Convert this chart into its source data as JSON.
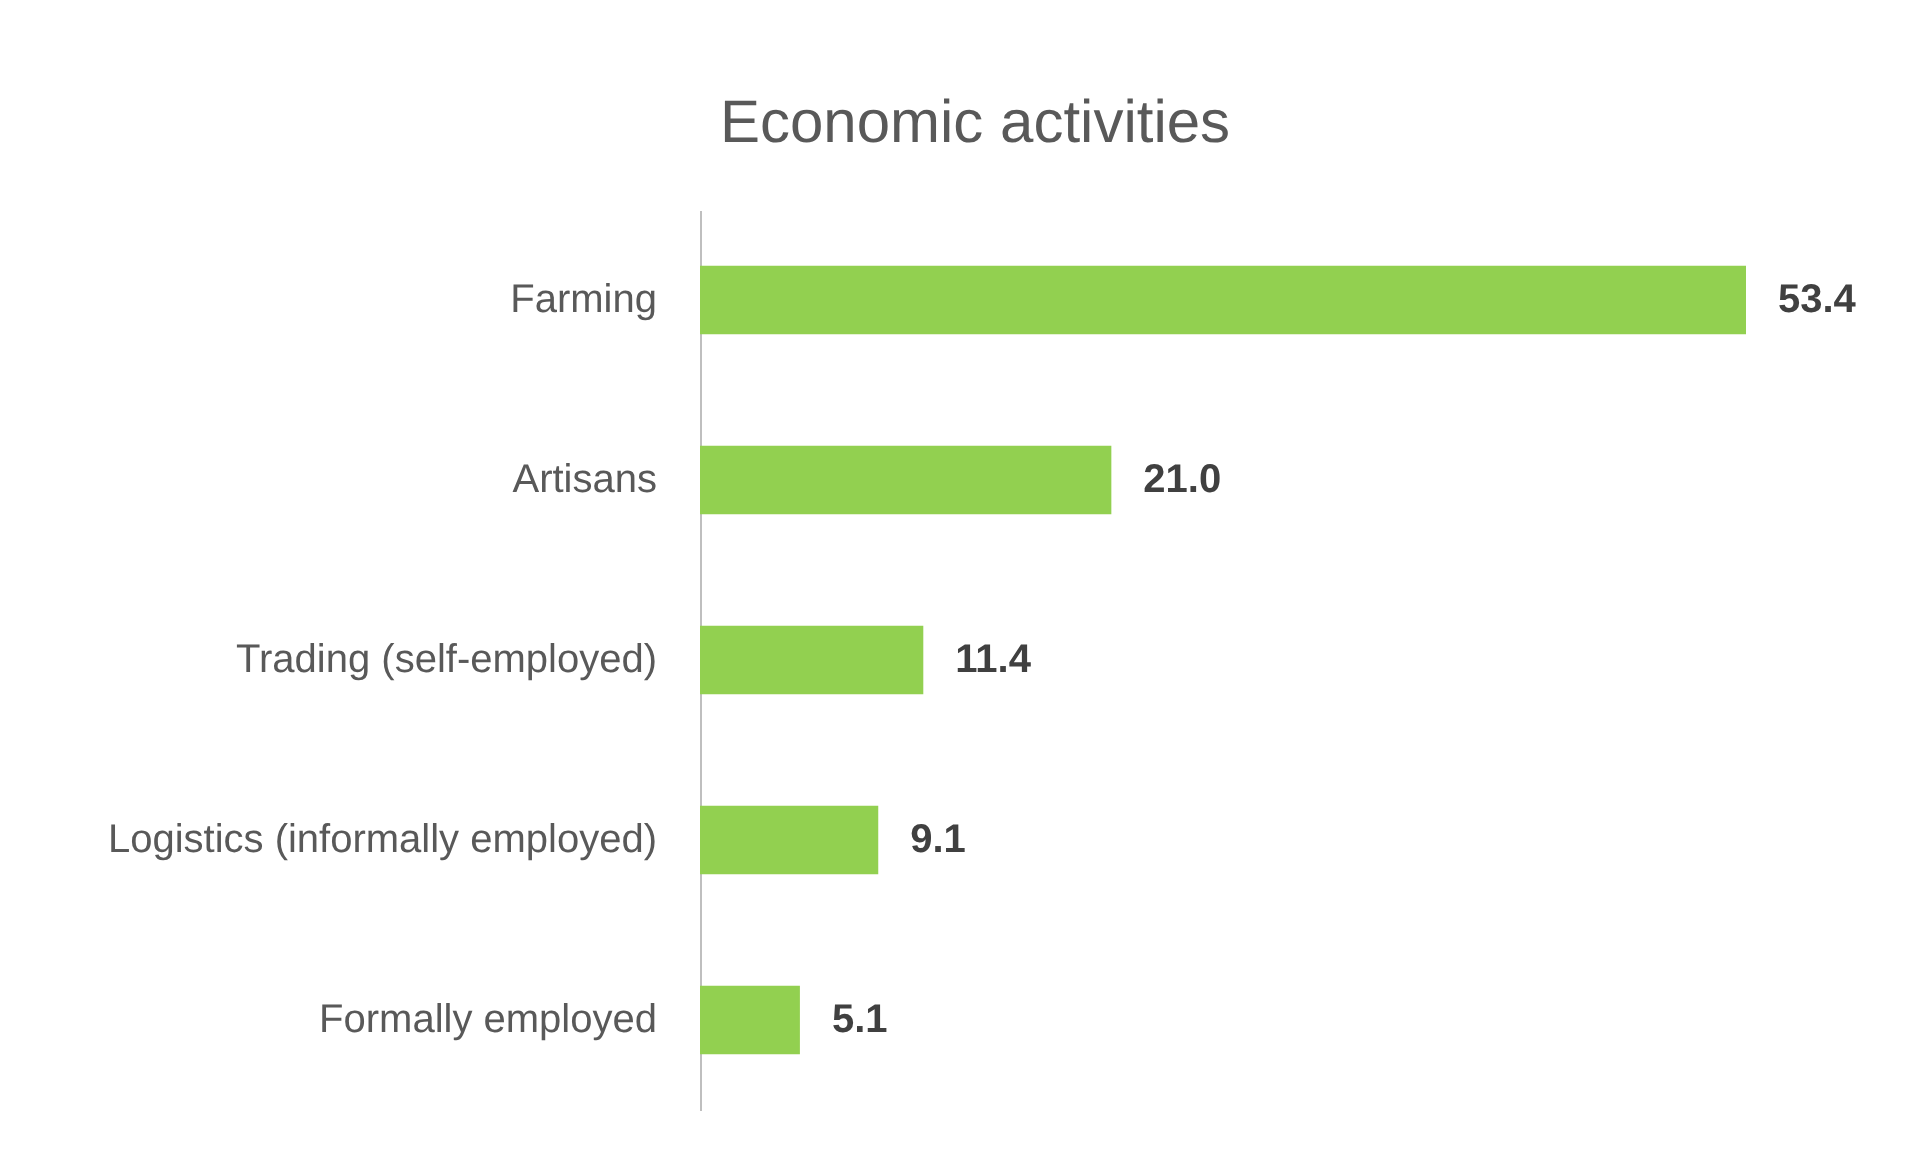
{
  "chart_data": {
    "type": "bar",
    "title": "Economic activities",
    "orientation": "horizontal",
    "categories": [
      "Farming",
      "Artisans",
      "Trading (self-employed)",
      "Logistics (informally employed)",
      "Formally employed"
    ],
    "values": [
      53.4,
      21.0,
      11.4,
      9.1,
      5.1
    ],
    "value_labels": [
      "53.4",
      "21.0",
      "11.4",
      "9.1",
      "5.1"
    ],
    "color": "#92d050",
    "tick_labels": "y"
  }
}
